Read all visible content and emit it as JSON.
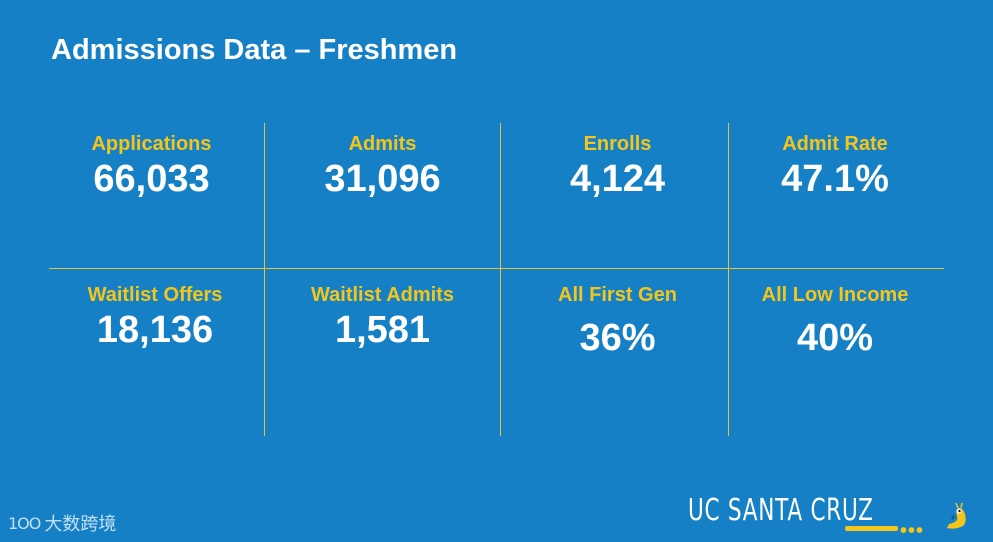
{
  "title": "Admissions Data – Freshmen",
  "stats": [
    {
      "label": "Applications",
      "value": "66,033"
    },
    {
      "label": "Admits",
      "value": "31,096"
    },
    {
      "label": "Enrolls",
      "value": "4,124"
    },
    {
      "label": "Admit Rate",
      "value": "47.1%"
    },
    {
      "label": "Waitlist Offers",
      "value": "18,136"
    },
    {
      "label": "Waitlist Admits",
      "value": "1,581"
    },
    {
      "label": "All First Gen",
      "value": "36%"
    },
    {
      "label": "All Low Income",
      "value": "40%"
    }
  ],
  "brand": {
    "name": "UC SANTA CRUZ",
    "icon": "slug-mascot-icon"
  },
  "watermark": {
    "logo": "1OO",
    "text": "大数跨境"
  },
  "colors": {
    "background": "#1580c6",
    "accent": "#f5c518",
    "text": "#ffffff"
  }
}
